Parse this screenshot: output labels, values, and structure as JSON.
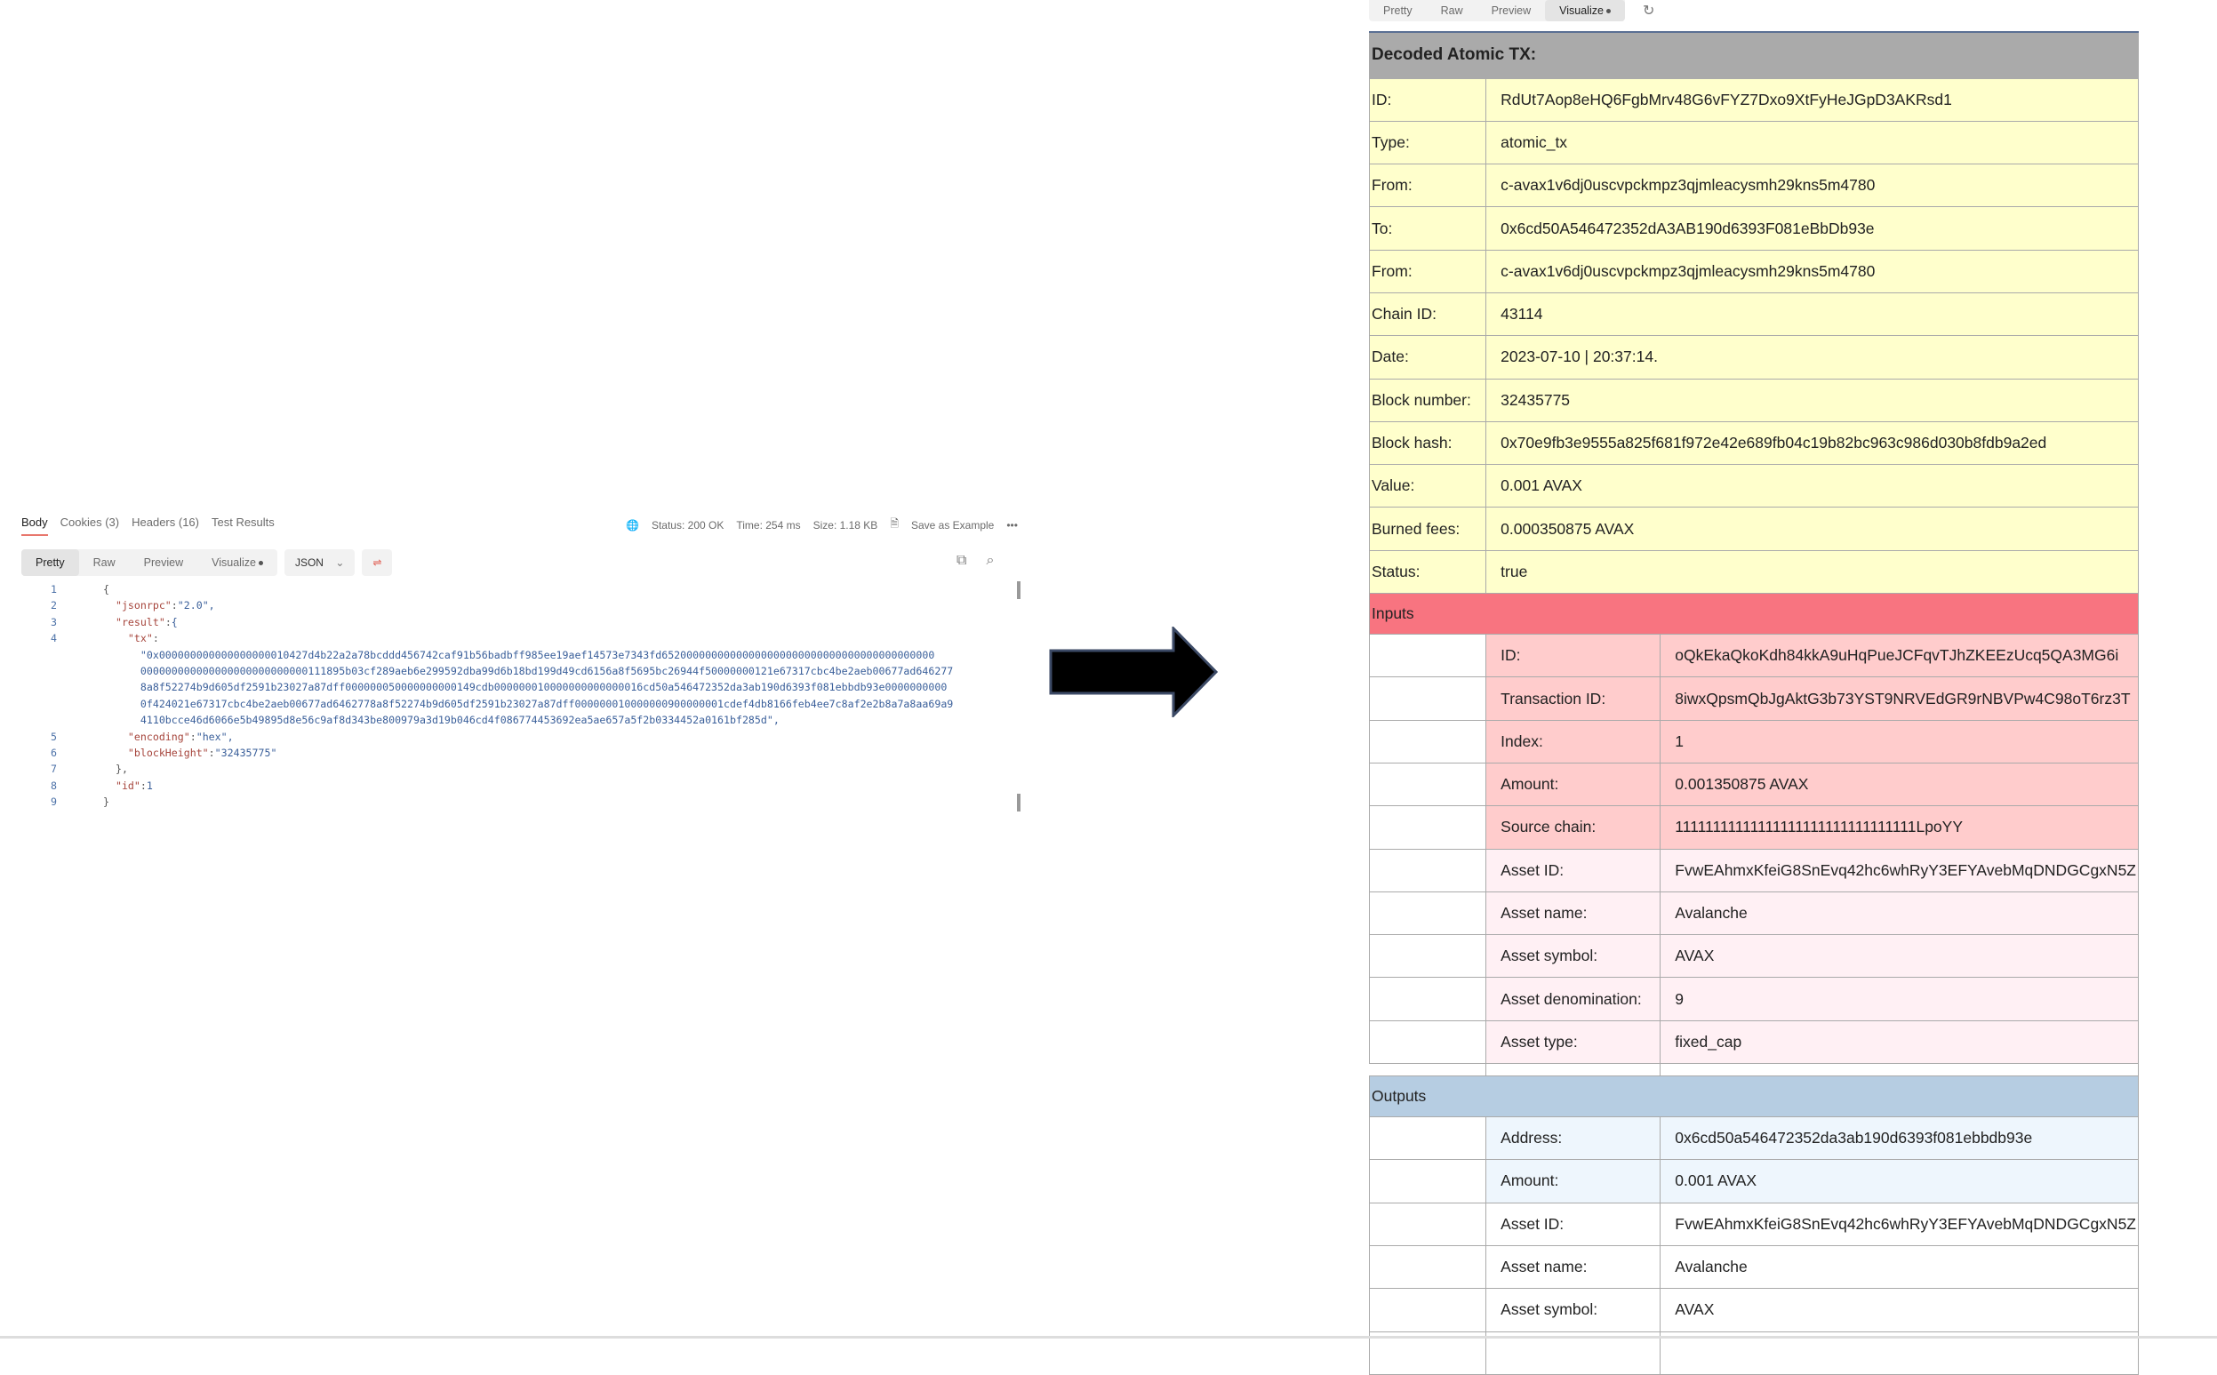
{
  "response": {
    "tabs": [
      "Body",
      "Cookies (3)",
      "Headers (16)",
      "Test Results"
    ],
    "status": "Status: 200 OK",
    "time": "Time: 254 ms",
    "size": "Size: 1.18 KB",
    "save_example": "Save as Example",
    "more": "•••",
    "view_modes": [
      "Pretty",
      "Raw",
      "Preview",
      "Visualize"
    ],
    "format": "JSON",
    "code": [
      {
        "n": "1",
        "t": "{"
      },
      {
        "n": "2",
        "k": "\"jsonrpc\"",
        "v": "\"2.0\","
      },
      {
        "n": "3",
        "k": "\"result\"",
        "v": "{"
      },
      {
        "n": "4",
        "k": "\"tx\"",
        "v": ""
      },
      {
        "n": "",
        "s": "\"0x000000000000000000010427d4b22a2a78bcddd456742caf91b56badbff985ee19aef14573e7343fd65200000000000000000000000000000000000000000"
      },
      {
        "n": "",
        "s": "000000000000000000000000000111895b03cf289aeb6e299592dba99d6b18bd199d49cd6156a8f5695bc26944f50000000121e67317cbc4be2aeb00677ad646277"
      },
      {
        "n": "",
        "s": "8a8f52274b9d605df2591b23027a87dff000000050000000000149cdb000000010000000000000016cd50a546472352da3ab190d6393f081ebbdb93e0000000000"
      },
      {
        "n": "",
        "s": "0f424021e67317cbc4be2aeb00677ad6462778a8f52274b9d605df2591b23027a87dff000000010000000900000001cdef4db8166feb4ee7c8af2e2b8a7a8aa69a9"
      },
      {
        "n": "",
        "s": "4110bcce46d6066e5b49895d8e56c9af8d343be800979a3d19b046cd4f086774453692ea5ae657a5f2b0334452a0161bf285d\","
      },
      {
        "n": "5",
        "k": "\"encoding\"",
        "v": "\"hex\","
      },
      {
        "n": "6",
        "k": "\"blockHeight\"",
        "v": "\"32435775\""
      },
      {
        "n": "7",
        "t": "},"
      },
      {
        "n": "8",
        "k": "\"id\"",
        "v": "1"
      },
      {
        "n": "9",
        "t": "}"
      }
    ]
  },
  "visualize": {
    "tabs": [
      "Pretty",
      "Raw",
      "Preview",
      "Visualize"
    ],
    "title": "Decoded Atomic TX:",
    "rows": [
      [
        "ID:",
        "RdUt7Aop8eHQ6FgbMrv48G6vFYZ7Dxo9XtFyHeJGpD3AKRsd1"
      ],
      [
        "Type:",
        "atomic_tx"
      ],
      [
        "From:",
        "c-avax1v6dj0uscvpckmpz3qjmleacysmh29kns5m4780"
      ],
      [
        "To:",
        "0x6cd50A546472352dA3AB190d6393F081eBbDb93e"
      ],
      [
        "From:",
        "c-avax1v6dj0uscvpckmpz3qjmleacysmh29kns5m4780"
      ],
      [
        "Chain ID:",
        "43114"
      ],
      [
        "Date:",
        "2023-07-10 | 20:37:14."
      ],
      [
        "Block number:",
        "32435775"
      ],
      [
        "Block hash:",
        "0x70e9fb3e9555a825f681f972e42e689fb04c19b82bc963c986d030b8fdb9a2ed"
      ],
      [
        "Value:",
        "0.001 AVAX"
      ],
      [
        "Burned fees:",
        "0.000350875 AVAX"
      ],
      [
        "Status:",
        "true"
      ]
    ],
    "inputs_label": "Inputs",
    "inputs": [
      [
        "ID:",
        "oQkEkaQkoKdh84kkA9uHqPueJCFqvTJhZKEEzUcq5QA3MG6i",
        "r"
      ],
      [
        "Transaction ID:",
        "8iwxQpsmQbJgAktG3b73YST9NRVEdGR9rNBVPw4C98oT6rz3T",
        "r"
      ],
      [
        "Index:",
        "1",
        "r"
      ],
      [
        "Amount:",
        "0.001350875 AVAX",
        "r"
      ],
      [
        "Source chain:",
        "11111111111111111111111111111111LpoYY",
        "r"
      ],
      [
        "Asset ID:",
        "FvwEAhmxKfeiG8SnEvq42hc6whRyY3EFYAvebMqDNDGCgxN5Z",
        "a"
      ],
      [
        "Asset name:",
        "Avalanche",
        "a"
      ],
      [
        "Asset symbol:",
        "AVAX",
        "a"
      ],
      [
        "Asset denomination:",
        "9",
        "a"
      ],
      [
        "Asset type:",
        "fixed_cap",
        "a"
      ]
    ],
    "outputs_label": "Outputs",
    "outputs": [
      [
        "Address:",
        "0x6cd50a546472352da3ab190d6393f081ebbdb93e",
        "r"
      ],
      [
        "Amount:",
        "0.001 AVAX",
        "r"
      ],
      [
        "Asset ID:",
        "FvwEAhmxKfeiG8SnEvq42hc6whRyY3EFYAvebMqDNDGCgxN5Z",
        "w"
      ],
      [
        "Asset name:",
        "Avalanche",
        "w"
      ],
      [
        "Asset symbol:",
        "AVAX",
        "w"
      ]
    ]
  },
  "colors": {
    "header": "#aaaaaa",
    "tx_rows": "#ffffcc",
    "inputs_header": "#f87480",
    "inputs_rows": "#ffcccc",
    "asset_rows": "#fff0f4",
    "outputs_header": "#b6cde2",
    "outputs_rows": "#eef6fd"
  }
}
